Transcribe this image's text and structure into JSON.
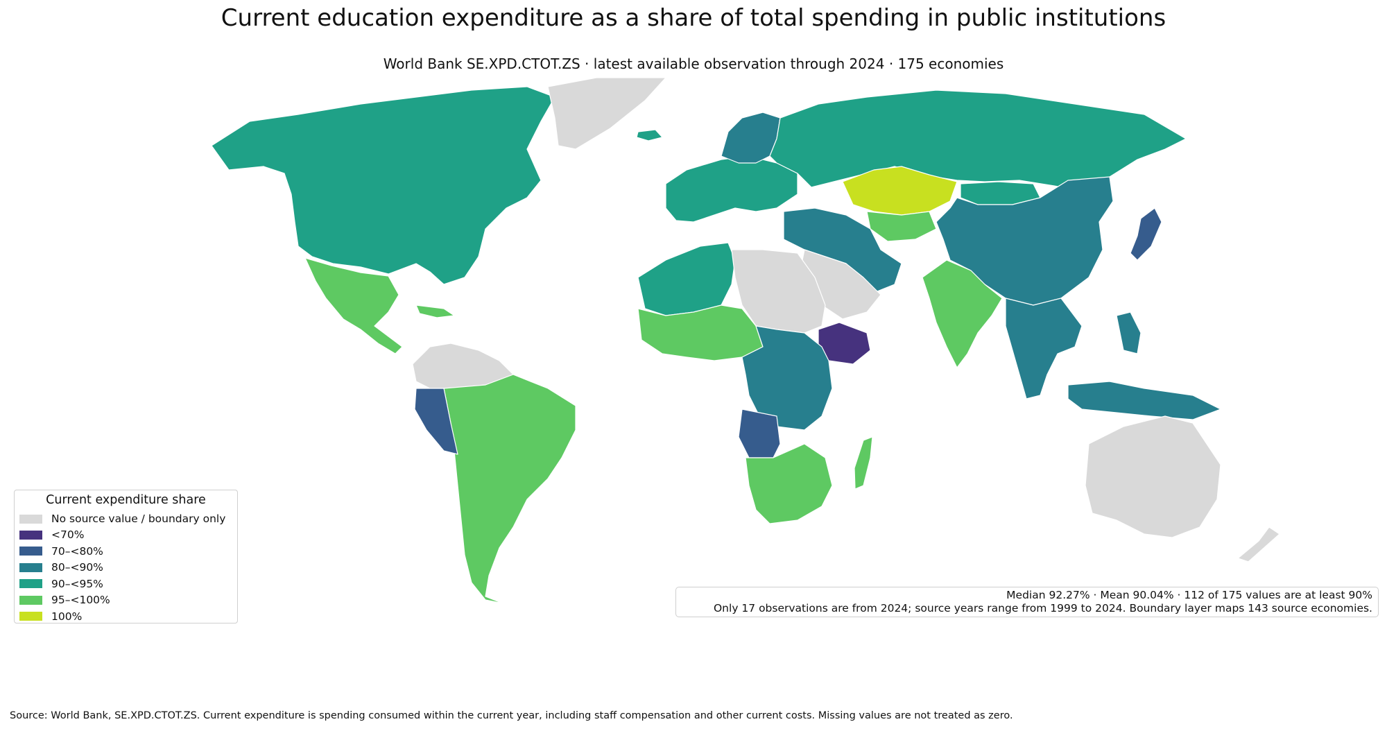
{
  "title": "Current education expenditure as a share of total spending in public institutions",
  "subtitle": "World Bank SE.XPD.CTOT.ZS · latest available observation through 2024 · 175 economies",
  "legend": {
    "title": "Current expenditure share",
    "items": [
      {
        "label": "No source value / boundary only",
        "color": "#d9d9d9"
      },
      {
        "label": "<70%",
        "color": "#46327e"
      },
      {
        "label": "70–<80%",
        "color": "#365c8d"
      },
      {
        "label": "80–<90%",
        "color": "#277f8e"
      },
      {
        "label": "90–<95%",
        "color": "#1fa187"
      },
      {
        "label": "95–<100%",
        "color": "#5ec962"
      },
      {
        "label": "100%",
        "color": "#c8e020"
      }
    ]
  },
  "stats": {
    "line1": "Median 92.27% · Mean 90.04% · 112 of 175 values are at least 90%",
    "line2": "Only 17 observations are from 2024; source years range from 1999 to 2024. Boundary layer maps 143 source economies."
  },
  "source": "Source: World Bank, SE.XPD.CTOT.ZS. Current expenditure is spending consumed within the current year, including staff compensation and other current costs. Missing values are not treated as zero.",
  "regions": [
    {
      "id": "north-america",
      "category": "90–<95%",
      "color": "#1fa187"
    },
    {
      "id": "greenland",
      "category": "No source value / boundary only",
      "color": "#d9d9d9"
    },
    {
      "id": "mexico-central-america",
      "category": "95–<100%",
      "color": "#5ec962"
    },
    {
      "id": "south-america",
      "category": "95–<100%",
      "color": "#5ec962"
    },
    {
      "id": "peru",
      "category": "70–<80%",
      "color": "#365c8d"
    },
    {
      "id": "colombia-venezuela",
      "category": "No source value / boundary only",
      "color": "#d9d9d9"
    },
    {
      "id": "europe",
      "category": "90–<95%",
      "color": "#1fa187"
    },
    {
      "id": "scandinavia",
      "category": "80–<90%",
      "color": "#277f8e"
    },
    {
      "id": "russia",
      "category": "90–<95%",
      "color": "#1fa187"
    },
    {
      "id": "kazakhstan",
      "category": "100%",
      "color": "#c8e020"
    },
    {
      "id": "central-asia",
      "category": "95–<100%",
      "color": "#5ec962"
    },
    {
      "id": "china",
      "category": "80–<90%",
      "color": "#277f8e"
    },
    {
      "id": "mongolia",
      "category": "90–<95%",
      "color": "#1fa187"
    },
    {
      "id": "iran-middle-east",
      "category": "80–<90%",
      "color": "#277f8e"
    },
    {
      "id": "arabia",
      "category": "No source value / boundary only",
      "color": "#d9d9d9"
    },
    {
      "id": "india",
      "category": "95–<100%",
      "color": "#5ec962"
    },
    {
      "id": "southeast-asia",
      "category": "80–<90%",
      "color": "#277f8e"
    },
    {
      "id": "japan",
      "category": "70–<80%",
      "color": "#365c8d"
    },
    {
      "id": "north-africa",
      "category": "90–<95%",
      "color": "#1fa187"
    },
    {
      "id": "sahara-east",
      "category": "No source value / boundary only",
      "color": "#d9d9d9"
    },
    {
      "id": "ethiopia",
      "category": "<70%",
      "color": "#46327e"
    },
    {
      "id": "central-africa",
      "category": "80–<90%",
      "color": "#277f8e"
    },
    {
      "id": "angola",
      "category": "70–<80%",
      "color": "#365c8d"
    },
    {
      "id": "southern-africa",
      "category": "95–<100%",
      "color": "#5ec962"
    },
    {
      "id": "madagascar",
      "category": "95–<100%",
      "color": "#5ec962"
    },
    {
      "id": "australia",
      "category": "No source value / boundary only",
      "color": "#d9d9d9"
    },
    {
      "id": "indonesia",
      "category": "80–<90%",
      "color": "#277f8e"
    }
  ]
}
